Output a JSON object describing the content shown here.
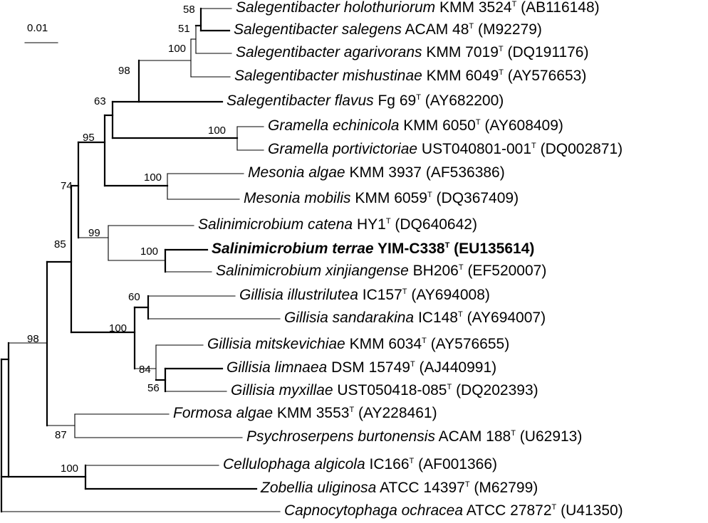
{
  "scale_bar": {
    "label": "0.01"
  },
  "taxa": [
    {
      "genus_species": "Salegentibacter holothuriorum",
      "strain": "KMM 3524",
      "type_mark": "T",
      "accession": "(AB116148)",
      "bold": false
    },
    {
      "genus_species": "Salegentibacter salegens",
      "strain": "ACAM 48",
      "type_mark": "T",
      "accession": "(M92279)",
      "bold": false
    },
    {
      "genus_species": "Salegentibacter agarivorans",
      "strain": "KMM 7019",
      "type_mark": "T",
      "accession": "(DQ191176)",
      "bold": false
    },
    {
      "genus_species": "Salegentibacter mishustinae",
      "strain": "KMM 6049",
      "type_mark": "T",
      "accession": "(AY576653)",
      "bold": false
    },
    {
      "genus_species": "Salegentibacter flavus",
      "strain": "Fg 69",
      "type_mark": "T",
      "accession": "(AY682200)",
      "bold": false
    },
    {
      "genus_species": "Gramella echinicola",
      "strain": "KMM 6050",
      "type_mark": "T",
      "accession": "(AY608409)",
      "bold": false
    },
    {
      "genus_species": "Gramella portivictoriae",
      "strain": "UST040801-001",
      "type_mark": "T",
      "accession": "(DQ002871)",
      "bold": false
    },
    {
      "genus_species": "Mesonia algae",
      "strain": "KMM 3937",
      "type_mark": "",
      "accession": "(AF536386)",
      "bold": false
    },
    {
      "genus_species": "Mesonia mobilis",
      "strain": "KMM 6059",
      "type_mark": "T",
      "accession": "(DQ367409)",
      "bold": false
    },
    {
      "genus_species": "Salinimicrobium catena",
      "strain": "HY1",
      "type_mark": "T",
      "accession": "(DQ640642)",
      "bold": false
    },
    {
      "genus_species": "Salinimicrobium terrae",
      "strain": "YIM-C338",
      "type_mark": "T",
      "accession": "(EU135614)",
      "bold": true
    },
    {
      "genus_species": "Salinimicrobium xinjiangense",
      "strain": "BH206",
      "type_mark": "T",
      "accession": "(EF520007)",
      "bold": false
    },
    {
      "genus_species": "Gillisia illustrilutea",
      "strain": "IC157",
      "type_mark": "T",
      "accession": "(AY694008)",
      "bold": false
    },
    {
      "genus_species": "Gillisia sandarakina",
      "strain": "IC148",
      "type_mark": "T",
      "accession": "(AY694007)",
      "bold": false
    },
    {
      "genus_species": "Gillisia mitskevichiae",
      "strain": "KMM 6034",
      "type_mark": "T",
      "accession": "(AY576655)",
      "bold": false
    },
    {
      "genus_species": "Gillisia limnaea",
      "strain": "DSM 15749",
      "type_mark": "T",
      "accession": "(AJ440991)",
      "bold": false
    },
    {
      "genus_species": "Gillisia myxillae",
      "strain": "UST050418-085",
      "type_mark": "T",
      "accession": "(DQ202393)",
      "bold": false
    },
    {
      "genus_species": "Formosa algae",
      "strain": "KMM 3553",
      "type_mark": "T",
      "accession": "(AY228461)",
      "bold": false
    },
    {
      "genus_species": "Psychroserpens burtonensis",
      "strain": "ACAM 188",
      "type_mark": "T",
      "accession": "(U62913)",
      "bold": false
    },
    {
      "genus_species": "Cellulophaga algicola",
      "strain": "IC166",
      "type_mark": "T",
      "accession": "(AF001366)",
      "bold": false
    },
    {
      "genus_species": "Zobellia uliginosa",
      "strain": "ATCC 14397",
      "type_mark": "T",
      "accession": "(M62799)",
      "bold": false
    },
    {
      "genus_species": "Capnocytophaga ochracea",
      "strain": "ATCC 27872",
      "type_mark": "T",
      "accession": "(U41350)",
      "bold": false
    }
  ],
  "bootstrap_values": [
    "58",
    "51",
    "100",
    "98",
    "63",
    "100",
    "95",
    "100",
    "74",
    "99",
    "100",
    "85",
    "60",
    "100",
    "84",
    "56",
    "98",
    "87",
    "100"
  ]
}
